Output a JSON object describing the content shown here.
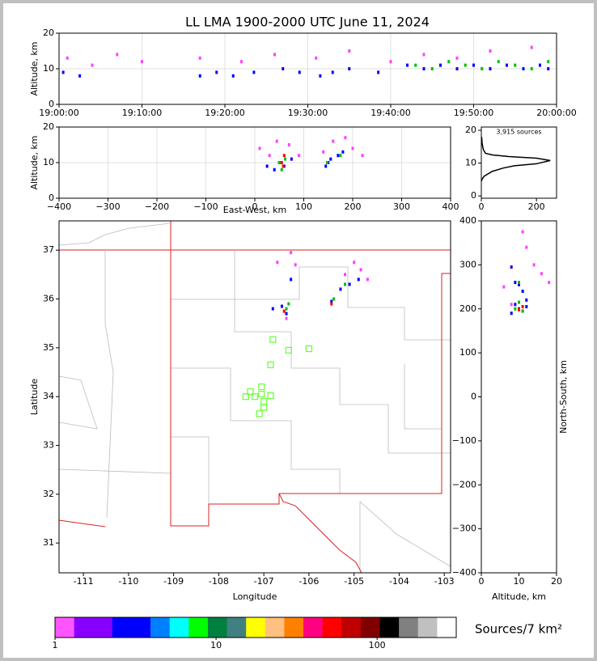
{
  "title": "LL LMA 1900-2000 UTC June 11, 2024",
  "chart_data": [
    {
      "type": "scatter",
      "ylabel": "Altitude, km",
      "xlim": [
        0,
        60
      ],
      "ylim": [
        0,
        20
      ],
      "grid": true,
      "xticks": [
        {
          "value": 0,
          "label": "19:00:00"
        },
        {
          "value": 10,
          "label": "19:10:00"
        },
        {
          "value": 20,
          "label": "19:20:00"
        },
        {
          "value": 30,
          "label": "19:30:00"
        },
        {
          "value": 40,
          "label": "19:40:00"
        },
        {
          "value": 50,
          "label": "19:50:00"
        },
        {
          "value": 60,
          "label": "20:00:00"
        }
      ],
      "yticks": [
        0,
        10,
        20
      ],
      "series": [
        {
          "color": "#ff40ff",
          "x": [
            1,
            4,
            7,
            10,
            17,
            22,
            26,
            31,
            35,
            40,
            44,
            48,
            52,
            57
          ],
          "y": [
            13,
            11,
            14,
            12,
            13,
            12,
            14,
            13,
            15,
            12,
            14,
            13,
            15,
            16
          ]
        },
        {
          "color": "#0000ff",
          "x": [
            0.5,
            2.5,
            17,
            19,
            21,
            23.5,
            27,
            29,
            31.5,
            33,
            35,
            38.5,
            42,
            44,
            46,
            48,
            50,
            52,
            54,
            56,
            58,
            59
          ],
          "y": [
            9,
            8,
            8,
            9,
            8,
            9,
            10,
            9,
            8,
            9,
            10,
            9,
            11,
            10,
            11,
            10,
            11,
            10,
            11,
            10,
            11,
            10
          ]
        },
        {
          "color": "#00c000",
          "x": [
            43,
            45,
            47,
            49,
            51,
            53,
            55,
            57,
            59
          ],
          "y": [
            11,
            10,
            12,
            11,
            10,
            12,
            11,
            10,
            12
          ]
        }
      ]
    },
    {
      "type": "scatter",
      "xlabel": "East-West, km",
      "ylabel": "Altitude, km",
      "xlim": [
        -400,
        400
      ],
      "ylim": [
        0,
        20
      ],
      "grid": true,
      "xticks": [
        {
          "value": -400,
          "label": "−400"
        },
        {
          "value": -300,
          "label": "−300"
        },
        {
          "value": -200,
          "label": "−200"
        },
        {
          "value": -100,
          "label": "−100"
        },
        0,
        100,
        200,
        300,
        400
      ],
      "yticks": [
        0,
        10,
        20
      ],
      "series": [
        {
          "color": "#ff40ff",
          "x": [
            10,
            30,
            45,
            70,
            90,
            140,
            160,
            185,
            200,
            220
          ],
          "y": [
            14,
            12,
            16,
            15,
            12,
            13,
            16,
            17,
            14,
            12
          ]
        },
        {
          "color": "#0000ff",
          "x": [
            25,
            40,
            50,
            60,
            75,
            145,
            150,
            155,
            170,
            180
          ],
          "y": [
            9,
            8,
            10,
            9,
            11,
            9,
            10,
            11,
            12,
            13
          ]
        },
        {
          "color": "#00c000",
          "x": [
            50,
            55,
            62,
            148,
            175
          ],
          "y": [
            10,
            8,
            11,
            10,
            12
          ]
        },
        {
          "color": "#ff0000",
          "x": [
            55,
            60,
            58
          ],
          "y": [
            10,
            12,
            9
          ]
        }
      ]
    },
    {
      "type": "line",
      "annotation": "3,915 sources",
      "xlim": [
        0,
        273
      ],
      "ylim": [
        -0.7,
        21
      ],
      "grid": false,
      "xticks": [
        0,
        200
      ],
      "yticks": [
        0,
        10,
        20
      ],
      "series": [
        {
          "color": "#000000",
          "x": [
            1,
            2,
            10,
            40,
            80,
            120,
            200,
            250,
            200,
            100,
            40,
            15,
            8,
            5,
            3,
            1
          ],
          "y": [
            4.5,
            5,
            6,
            7.5,
            8.5,
            9.2,
            9.8,
            10.8,
            11.5,
            12,
            12.5,
            13,
            14,
            15,
            16,
            18
          ]
        }
      ]
    },
    {
      "type": "scatter",
      "xlabel": "Longitude",
      "ylabel": "Latitude",
      "xlim": [
        -111.54,
        -102.86
      ],
      "ylim": [
        30.39,
        37.6
      ],
      "grid": false,
      "xticks": [
        -111,
        -110,
        -109,
        -108,
        -107,
        -106,
        -105,
        -104,
        -103
      ],
      "yticks": [
        31,
        32,
        33,
        34,
        35,
        36,
        37
      ],
      "series": [
        {
          "color": "#ff40ff",
          "x": [
            -106.7,
            -106.4,
            -106.3,
            -105.0,
            -104.85,
            -104.7,
            -106.5,
            -105.2
          ],
          "y": [
            36.75,
            36.95,
            36.7,
            36.75,
            36.6,
            36.4,
            35.6,
            36.5
          ]
        },
        {
          "color": "#0000ff",
          "x": [
            -106.8,
            -106.6,
            -106.4,
            -105.3,
            -105.1,
            -105.5,
            -104.9,
            -106.5
          ],
          "y": [
            35.8,
            35.85,
            36.4,
            36.2,
            36.3,
            35.95,
            36.4,
            35.7
          ]
        },
        {
          "color": "#00c000",
          "x": [
            -106.5,
            -105.45,
            -105.2,
            -106.45
          ],
          "y": [
            35.8,
            36.0,
            36.3,
            35.9
          ]
        },
        {
          "color": "#ff0000",
          "x": [
            -106.55,
            -105.5
          ],
          "y": [
            35.75,
            35.9
          ]
        },
        {
          "color": "#66ff33",
          "marker": "square",
          "x": [
            -106.8,
            -106.45,
            -106.0,
            -106.85,
            -107.3,
            -107.4,
            -107.2,
            -107.05,
            -107.0,
            -107.1,
            -106.85,
            -107.05,
            -107.0
          ],
          "y": [
            35.17,
            34.95,
            34.98,
            34.65,
            34.1,
            34.0,
            34.0,
            34.2,
            33.9,
            33.65,
            34.02,
            34.05,
            33.78
          ]
        }
      ]
    },
    {
      "type": "scatter",
      "xlabel": "Altitude, km",
      "ylabel": "North-South, km",
      "xlim": [
        0,
        20
      ],
      "ylim": [
        -400,
        400
      ],
      "grid": false,
      "xticks": [
        0,
        10,
        20
      ],
      "yticks": [
        {
          "value": -400,
          "label": "−400"
        },
        {
          "value": -300,
          "label": "−300"
        },
        {
          "value": -200,
          "label": "−200"
        },
        {
          "value": -100,
          "label": "−100"
        },
        0,
        100,
        200,
        300,
        400
      ],
      "series": [
        {
          "color": "#ff40ff",
          "x": [
            6,
            14,
            16,
            12,
            8,
            18,
            11
          ],
          "y": [
            250,
            300,
            280,
            340,
            210,
            260,
            375
          ]
        },
        {
          "color": "#0000ff",
          "x": [
            8,
            9,
            10,
            11,
            12,
            9,
            10,
            11,
            8,
            12
          ],
          "y": [
            295,
            260,
            255,
            240,
            220,
            210,
            200,
            195,
            190,
            205
          ]
        },
        {
          "color": "#00c000",
          "x": [
            9,
            10,
            11,
            10
          ],
          "y": [
            200,
            215,
            195,
            260
          ]
        },
        {
          "color": "#ff0000",
          "x": [
            10,
            11
          ],
          "y": [
            198,
            205
          ]
        }
      ]
    }
  ],
  "colorbar": {
    "label": "Sources/7 km²",
    "log": true,
    "xlim": [
      1,
      310
    ],
    "xticks": [
      1,
      10,
      100
    ],
    "colors": [
      "#ff55ff",
      "#8800ff",
      "#8800ff",
      "#0000ff",
      "#0000ff",
      "#0080ff",
      "#00ffff",
      "#00ff00",
      "#008040",
      "#408080",
      "#ffff00",
      "#ffc080",
      "#ff8000",
      "#ff0080",
      "#ff0000",
      "#c00000",
      "#800000",
      "#000000",
      "#808080",
      "#c0c0c0",
      "#ffffff"
    ]
  }
}
